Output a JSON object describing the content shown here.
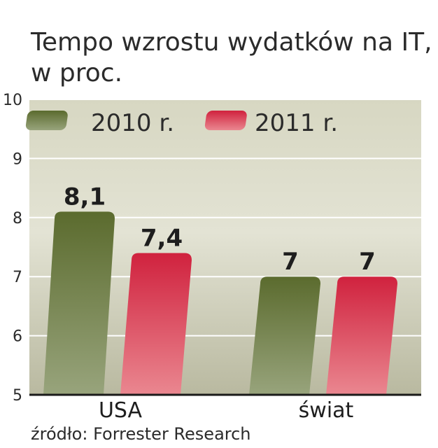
{
  "chart_data": {
    "type": "bar",
    "title_lines": [
      "Tempo wzrostu wydatków na IT,",
      "w proc."
    ],
    "categories": [
      "USA",
      "świat"
    ],
    "series": [
      {
        "name": "2010 r.",
        "values": [
          8.1,
          7
        ],
        "labels": [
          "8,1",
          "7"
        ]
      },
      {
        "name": "2011 r.",
        "values": [
          7.4,
          7
        ],
        "labels": [
          "7,4",
          "7"
        ]
      }
    ],
    "ylim": [
      5,
      10
    ],
    "yticks": [
      "5",
      "6",
      "7",
      "8",
      "9",
      "10"
    ],
    "grid": true,
    "legend_position": "top-left",
    "source": "źródło: Forrester Research",
    "colors": {
      "series_2010": "#5b6b2e",
      "series_2010_light": "#98a47c",
      "series_2011": "#d0223e",
      "series_2011_light": "#ea8790",
      "plot_top": "#d7d7c2",
      "plot_bottom": "#b9b9a0",
      "axis": "#1a1a1a"
    }
  }
}
